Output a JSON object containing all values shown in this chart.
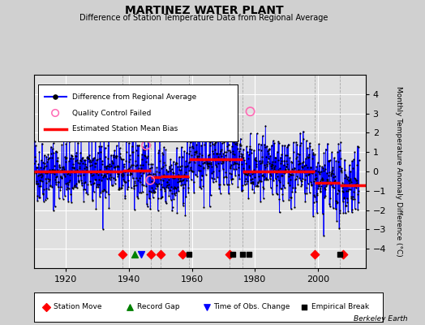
{
  "title": "MARTINEZ WATER PLANT",
  "subtitle": "Difference of Station Temperature Data from Regional Average",
  "ylabel": "Monthly Temperature Anomaly Difference (°C)",
  "attribution": "Berkeley Earth",
  "ylim": [
    -5,
    5
  ],
  "xlim": [
    1910,
    2015
  ],
  "yticks": [
    -4,
    -3,
    -2,
    -1,
    0,
    1,
    2,
    3,
    4
  ],
  "xticks": [
    1920,
    1940,
    1960,
    1980,
    2000
  ],
  "bg_color": "#d0d0d0",
  "plot_bg_color": "#e0e0e0",
  "seed": 42,
  "station_moves": [
    1938,
    1947,
    1950,
    1957,
    1972,
    1999,
    2008
  ],
  "record_gaps": [
    1942
  ],
  "obs_changes": [
    1944
  ],
  "empirical_breaks": [
    1959,
    1973,
    1976,
    1978,
    2007
  ],
  "event_y": -4.3,
  "bias_segments": [
    {
      "x_start": 1910,
      "x_end": 1938,
      "bias": 0.0
    },
    {
      "x_start": 1938,
      "x_end": 1947,
      "bias": 0.05
    },
    {
      "x_start": 1947,
      "x_end": 1950,
      "bias": -0.3
    },
    {
      "x_start": 1950,
      "x_end": 1959,
      "bias": -0.25
    },
    {
      "x_start": 1959,
      "x_end": 1972,
      "bias": 0.65
    },
    {
      "x_start": 1972,
      "x_end": 1976,
      "bias": 0.65
    },
    {
      "x_start": 1976,
      "x_end": 1999,
      "bias": 0.0
    },
    {
      "x_start": 1999,
      "x_end": 2007,
      "bias": -0.6
    },
    {
      "x_start": 2007,
      "x_end": 2015,
      "bias": -0.7
    }
  ],
  "qc_failed": [
    {
      "year": 1978.5,
      "value": 3.1
    },
    {
      "year": 1945.5,
      "value": 1.35
    },
    {
      "year": 1946.8,
      "value": -0.45
    }
  ],
  "segment_vlines": [
    1938,
    1947,
    1950,
    1959,
    1972,
    1976,
    1999,
    2007
  ]
}
